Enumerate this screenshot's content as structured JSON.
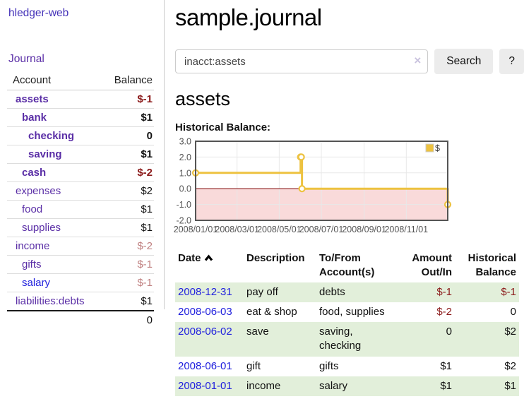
{
  "sidebar": {
    "brand": "hledger-web",
    "nav_journal": "Journal",
    "table": {
      "account_header": "Account",
      "balance_header": "Balance"
    },
    "accounts": [
      {
        "name": "assets",
        "level": 1,
        "bold": true,
        "balance": "$-1",
        "balance_style": "negative-strong",
        "link_style": "visited"
      },
      {
        "name": "bank",
        "level": 2,
        "bold": true,
        "balance": "$1",
        "balance_style": "normal",
        "link_style": "visited"
      },
      {
        "name": "checking",
        "level": 3,
        "bold": true,
        "balance": "0",
        "balance_style": "normal",
        "link_style": "visited"
      },
      {
        "name": "saving",
        "level": 3,
        "bold": true,
        "balance": "$1",
        "balance_style": "normal",
        "link_style": "visited"
      },
      {
        "name": "cash",
        "level": 2,
        "bold": true,
        "balance": "$-2",
        "balance_style": "negative-strong",
        "link_style": "visited"
      },
      {
        "name": "expenses",
        "level": 1,
        "bold": false,
        "balance": "$2",
        "balance_style": "normal",
        "link_style": "visited"
      },
      {
        "name": "food",
        "level": 2,
        "bold": false,
        "balance": "$1",
        "balance_style": "normal",
        "link_style": "visited"
      },
      {
        "name": "supplies",
        "level": 2,
        "bold": false,
        "balance": "$1",
        "balance_style": "normal",
        "link_style": "visited"
      },
      {
        "name": "income",
        "level": 1,
        "bold": false,
        "balance": "$-2",
        "balance_style": "negative-soft",
        "link_style": "visited"
      },
      {
        "name": "gifts",
        "level": 2,
        "bold": false,
        "balance": "$-1",
        "balance_style": "negative-soft",
        "link_style": "visited"
      },
      {
        "name": "salary",
        "level": 2,
        "bold": false,
        "balance": "$-1",
        "balance_style": "negative-soft",
        "link_style": "unvisited"
      },
      {
        "name": "liabilities:debts",
        "level": 1,
        "bold": false,
        "balance": "$1",
        "balance_style": "normal",
        "link_style": "visited"
      }
    ],
    "total": "0"
  },
  "main": {
    "title": "sample.journal",
    "search": {
      "value": "inacct:assets",
      "clear_icon": "×",
      "search_button": "Search",
      "help_button": "?"
    },
    "account_heading": "assets",
    "chart_heading": "Historical Balance:"
  },
  "chart_data": {
    "type": "line",
    "style": "step",
    "title": "Historical Balance:",
    "legend": {
      "label": "$",
      "position": "top-right"
    },
    "series": [
      {
        "name": "$",
        "color": "#edc240",
        "points": [
          [
            "2008-01-01",
            1
          ],
          [
            "2008-06-01",
            2
          ],
          [
            "2008-06-02",
            2
          ],
          [
            "2008-06-03",
            0
          ],
          [
            "2008-12-31",
            -1
          ]
        ]
      }
    ],
    "x_start": "2008-01-01",
    "x_end": "2008-12-31",
    "x_tick_labels": [
      "2008/01/01",
      "2008/03/01",
      "2008/05/01",
      "2008/07/01",
      "2008/09/01",
      "2008/11/01"
    ],
    "y_ticks": [
      3.0,
      2.0,
      1.0,
      0.0,
      -1.0,
      -2.0
    ],
    "y_tick_labels": [
      "3.0",
      "2.0",
      "1.0",
      "0.0",
      "-1.0",
      "-2.0"
    ],
    "ylim": [
      -2.0,
      3.0
    ],
    "grid": true,
    "grid_color": "#e8e8e8",
    "border_color": "#545454",
    "negative_region_fill": "#f9dada",
    "zero_line_color": "#8b1a1a",
    "tick_label_color": "#545454"
  },
  "register": {
    "headers": {
      "date": "Date",
      "description": "Description",
      "tofrom": "To/From Account(s)",
      "amount": "Amount Out/In",
      "balance": "Historical Balance"
    },
    "sort": {
      "column": "date",
      "direction": "ascending"
    },
    "rows": [
      {
        "date": "2008-12-31",
        "description": "pay off",
        "accounts": "debts",
        "amount": "$-1",
        "amount_negative": true,
        "balance": "$-1",
        "balance_negative": true
      },
      {
        "date": "2008-06-03",
        "description": "eat & shop",
        "accounts": "food, supplies",
        "amount": "$-2",
        "amount_negative": true,
        "balance": "0",
        "balance_negative": false
      },
      {
        "date": "2008-06-02",
        "description": "save",
        "accounts": "saving, checking",
        "amount": "0",
        "amount_negative": false,
        "balance": "$2",
        "balance_negative": false
      },
      {
        "date": "2008-06-01",
        "description": "gift",
        "accounts": "gifts",
        "amount": "$1",
        "amount_negative": false,
        "balance": "$2",
        "balance_negative": false
      },
      {
        "date": "2008-01-01",
        "description": "income",
        "accounts": "salary",
        "amount": "$1",
        "amount_negative": false,
        "balance": "$1",
        "balance_negative": false
      }
    ]
  },
  "colors": {
    "link_purple": "#5a2ea6",
    "link_blue": "#2121dd",
    "negative_strong": "#8b1a1a",
    "negative_soft": "#c08181",
    "row_shaded_green": "#e2efda",
    "chart_line_gold": "#edc240"
  }
}
